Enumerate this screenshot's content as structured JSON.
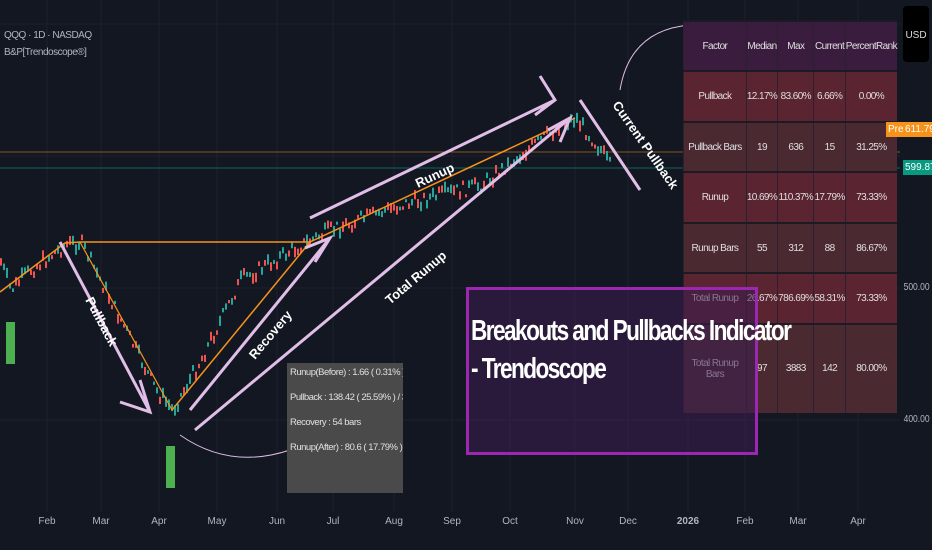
{
  "legend": {
    "symbol": "QQQ · 1D · NASDAQ",
    "indicator": "B&P[Trendoscope®]"
  },
  "price_axis": {
    "currency": "USD",
    "labels": [
      "500.00",
      "400.00"
    ],
    "pre_label": "Pre",
    "pre_price": "611.79",
    "last_price": "599.87",
    "colors": {
      "pre": "#f7931a",
      "last": "#089981"
    }
  },
  "time_axis": [
    "Feb",
    "Mar",
    "Apr",
    "May",
    "Jun",
    "Jul",
    "Aug",
    "Sep",
    "Oct",
    "Nov",
    "Dec",
    "2026",
    "Feb",
    "Mar",
    "Apr"
  ],
  "annotations": {
    "pullback": "Pullback",
    "recovery": "Recovery",
    "runup": "Runup",
    "total_runup": "Total Runup",
    "current_pullback": "Current Pullback"
  },
  "title_box": {
    "line1": "Breakouts and Pullbacks Indicator",
    "line2": " - Trendoscope"
  },
  "tooltip": [
    "Runup(Before) : 1.66 ( 0.31% ) / 1",
    "Pullback : 138.42 ( 25.59% ) / 33",
    "Recovery : 54 bars",
    "Runup(After) : 80.6 ( 17.79% ) / 88"
  ],
  "table": {
    "headers": [
      "Factor",
      "Median",
      "Max",
      "Current",
      "PercentRank"
    ],
    "rows": [
      [
        "Pullback",
        "12.17%",
        "83.60%",
        "6.66%",
        "0.00%"
      ],
      [
        "Pullback Bars",
        "19",
        "636",
        "15",
        "31.25%"
      ],
      [
        "Runup",
        "10.69%",
        "110.37%",
        "17.79%",
        "73.33%"
      ],
      [
        "Runup Bars",
        "55",
        "312",
        "88",
        "86.67%"
      ],
      [
        "Total Runup",
        "26.67%",
        "786.69%",
        "58.31%",
        "73.33%"
      ],
      [
        "Total Runup Bars",
        "97",
        "3883",
        "142",
        "80.00%"
      ]
    ]
  },
  "colors": {
    "accent": "#9c27b0",
    "arrows": "#e1bee7",
    "trend": "#f7931a",
    "up": "#26a69a",
    "down": "#ef5350",
    "marker": "#4caf50"
  }
}
